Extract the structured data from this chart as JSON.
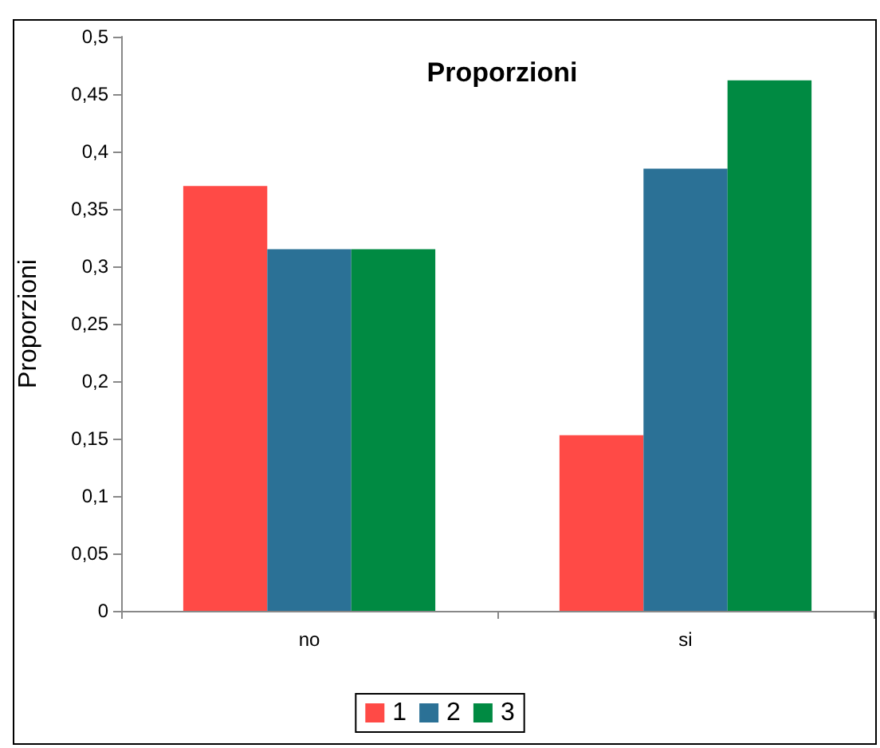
{
  "chart_data": {
    "type": "bar",
    "title": "Proporzioni",
    "ylabel": "Proporzioni",
    "categories": [
      "no",
      "si"
    ],
    "series": [
      {
        "name": "1",
        "color": "#ff4a46",
        "values": [
          0.37,
          0.153
        ]
      },
      {
        "name": "2",
        "color": "#2b7196",
        "values": [
          0.315,
          0.385
        ]
      },
      {
        "name": "3",
        "color": "#008a42",
        "values": [
          0.315,
          0.462
        ]
      }
    ],
    "ylim": [
      0,
      0.5
    ],
    "yticks": [
      0,
      {
        "value": 0.05,
        "label": "0,05"
      },
      {
        "value": 0.1,
        "label": "0,1"
      },
      {
        "value": 0.15,
        "label": "0,15"
      },
      {
        "value": 0.2,
        "label": "0,2"
      },
      {
        "value": 0.25,
        "label": "0,25"
      },
      {
        "value": 0.3,
        "label": "0,3"
      },
      {
        "value": 0.35,
        "label": "0,35"
      },
      {
        "value": 0.4,
        "label": "0,4"
      },
      {
        "value": 0.45,
        "label": "0,45"
      },
      {
        "value": 0.5,
        "label": "0,5"
      }
    ],
    "grid": false,
    "legend": "bottom"
  }
}
